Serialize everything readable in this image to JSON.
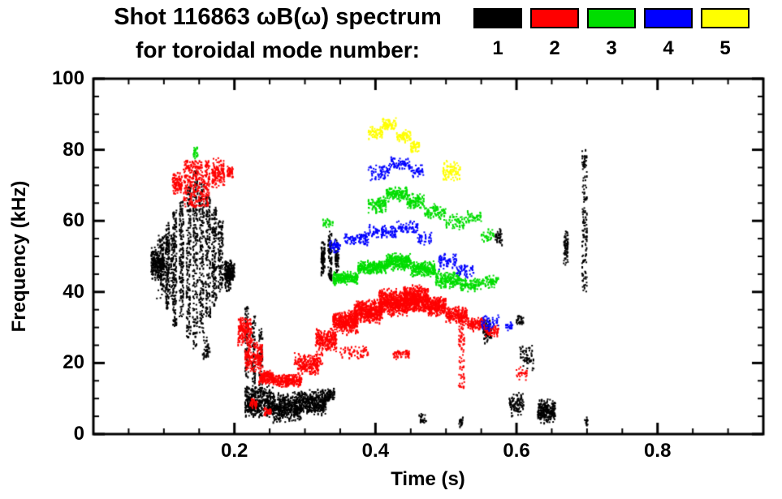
{
  "header": {
    "title": "Shot 116863 ωB(ω) spectrum",
    "subtitle": "for toroidal mode number:"
  },
  "legend": {
    "position": "top-right",
    "items": [
      {
        "label": "1",
        "color": "#000000",
        "name": "mode-1"
      },
      {
        "label": "2",
        "color": "#ff0000",
        "name": "mode-2"
      },
      {
        "label": "3",
        "color": "#00dd00",
        "name": "mode-3"
      },
      {
        "label": "4",
        "color": "#0000ff",
        "name": "mode-4"
      },
      {
        "label": "5",
        "color": "#ffff00",
        "name": "mode-5"
      }
    ]
  },
  "chart_data": {
    "type": "scatter",
    "title": "Shot 116863 ωB(ω) spectrum for toroidal mode number:",
    "xlabel": "Time (s)",
    "ylabel": "Frequency (kHz)",
    "xlim": [
      0.0,
      0.95
    ],
    "ylim": [
      0,
      100
    ],
    "xticks": [
      0.2,
      0.4,
      0.6,
      0.8
    ],
    "yticks": [
      0,
      20,
      40,
      60,
      80,
      100
    ],
    "x_minor_step": 0.05,
    "y_minor_step": 5,
    "grid": false,
    "legend_position": "top-right",
    "band_format": "[t_start_s, t_end_s, f_min_kHz, f_max_kHz, n_points]",
    "series": [
      {
        "name": "n=1",
        "mode": 1,
        "color": "#000000",
        "bands": [
          [
            0.082,
            0.1,
            43,
            53,
            260
          ],
          [
            0.09,
            0.115,
            38,
            56,
            200
          ],
          [
            0.103,
            0.108,
            35,
            60,
            120
          ],
          [
            0.113,
            0.118,
            30,
            63,
            140
          ],
          [
            0.122,
            0.128,
            33,
            66,
            150
          ],
          [
            0.132,
            0.138,
            27,
            70,
            160
          ],
          [
            0.141,
            0.148,
            24,
            74,
            180
          ],
          [
            0.15,
            0.157,
            28,
            71,
            170
          ],
          [
            0.159,
            0.166,
            33,
            67,
            150
          ],
          [
            0.168,
            0.175,
            36,
            64,
            140
          ],
          [
            0.177,
            0.184,
            40,
            60,
            120
          ],
          [
            0.186,
            0.196,
            40,
            50,
            150
          ],
          [
            0.155,
            0.165,
            20,
            28,
            40
          ],
          [
            0.19,
            0.2,
            43,
            48,
            80
          ],
          [
            0.215,
            0.22,
            16,
            36,
            80
          ],
          [
            0.225,
            0.23,
            14,
            34,
            70
          ],
          [
            0.235,
            0.24,
            13,
            30,
            60
          ],
          [
            0.215,
            0.255,
            4,
            14,
            420
          ],
          [
            0.255,
            0.295,
            3,
            12,
            450
          ],
          [
            0.295,
            0.33,
            5,
            13,
            350
          ],
          [
            0.33,
            0.342,
            9,
            13,
            60
          ],
          [
            0.323,
            0.328,
            44,
            56,
            90
          ],
          [
            0.333,
            0.338,
            43,
            57,
            90
          ],
          [
            0.343,
            0.348,
            45,
            55,
            70
          ],
          [
            0.553,
            0.565,
            25,
            33,
            90
          ],
          [
            0.59,
            0.61,
            5,
            12,
            100
          ],
          [
            0.605,
            0.625,
            17,
            26,
            60
          ],
          [
            0.63,
            0.655,
            3,
            10,
            240
          ],
          [
            0.667,
            0.673,
            47,
            58,
            70
          ],
          [
            0.693,
            0.7,
            40,
            80,
            140
          ],
          [
            0.697,
            0.701,
            2,
            5,
            15
          ],
          [
            0.462,
            0.472,
            3,
            6,
            25
          ],
          [
            0.518,
            0.524,
            2,
            5,
            18
          ],
          [
            0.57,
            0.58,
            53,
            58,
            40
          ],
          [
            0.6,
            0.61,
            30,
            34,
            30
          ]
        ]
      },
      {
        "name": "n=2",
        "mode": 2,
        "color": "#ff0000",
        "bands": [
          [
            0.112,
            0.126,
            67,
            74,
            90
          ],
          [
            0.128,
            0.165,
            64,
            77,
            320
          ],
          [
            0.168,
            0.186,
            69,
            78,
            130
          ],
          [
            0.19,
            0.198,
            72,
            76,
            40
          ],
          [
            0.205,
            0.225,
            25,
            33,
            160
          ],
          [
            0.215,
            0.24,
            17,
            27,
            200
          ],
          [
            0.235,
            0.255,
            14,
            18,
            150
          ],
          [
            0.255,
            0.295,
            13,
            17,
            260
          ],
          [
            0.29,
            0.32,
            16,
            22,
            150
          ],
          [
            0.315,
            0.345,
            23,
            30,
            220
          ],
          [
            0.34,
            0.375,
            28,
            35,
            360
          ],
          [
            0.37,
            0.41,
            31,
            38,
            460
          ],
          [
            0.405,
            0.445,
            33,
            41,
            560
          ],
          [
            0.44,
            0.475,
            34,
            42,
            560
          ],
          [
            0.475,
            0.5,
            33,
            39,
            260
          ],
          [
            0.5,
            0.53,
            31,
            36,
            200
          ],
          [
            0.53,
            0.555,
            29,
            33,
            120
          ],
          [
            0.555,
            0.575,
            27,
            31,
            60
          ],
          [
            0.285,
            0.325,
            19,
            23,
            80
          ],
          [
            0.35,
            0.39,
            21,
            25,
            60
          ],
          [
            0.425,
            0.45,
            21,
            24,
            50
          ],
          [
            0.222,
            0.232,
            7,
            10,
            40
          ],
          [
            0.242,
            0.252,
            5,
            8,
            30
          ],
          [
            0.518,
            0.526,
            13,
            33,
            80
          ],
          [
            0.6,
            0.615,
            15,
            19,
            30
          ]
        ]
      },
      {
        "name": "n=3",
        "mode": 3,
        "color": "#00dd00",
        "bands": [
          [
            0.142,
            0.148,
            77,
            81,
            25
          ],
          [
            0.34,
            0.375,
            42,
            46,
            230
          ],
          [
            0.375,
            0.415,
            45,
            49,
            280
          ],
          [
            0.415,
            0.45,
            46,
            51,
            280
          ],
          [
            0.45,
            0.485,
            44,
            49,
            230
          ],
          [
            0.485,
            0.52,
            41,
            46,
            180
          ],
          [
            0.52,
            0.55,
            40,
            44,
            100
          ],
          [
            0.55,
            0.575,
            41,
            45,
            60
          ],
          [
            0.39,
            0.415,
            62,
            67,
            110
          ],
          [
            0.415,
            0.445,
            65,
            70,
            140
          ],
          [
            0.445,
            0.47,
            63,
            68,
            100
          ],
          [
            0.47,
            0.5,
            60,
            65,
            80
          ],
          [
            0.5,
            0.53,
            57,
            62,
            60
          ],
          [
            0.53,
            0.55,
            59,
            63,
            40
          ],
          [
            0.55,
            0.57,
            54,
            58,
            30
          ],
          [
            0.325,
            0.34,
            58,
            61,
            25
          ]
        ]
      },
      {
        "name": "n=4",
        "mode": 4,
        "color": "#0000ff",
        "bands": [
          [
            0.335,
            0.35,
            51,
            55,
            50
          ],
          [
            0.355,
            0.39,
            53,
            57,
            80
          ],
          [
            0.39,
            0.43,
            55,
            59,
            90
          ],
          [
            0.43,
            0.46,
            56,
            60,
            60
          ],
          [
            0.46,
            0.48,
            53,
            57,
            35
          ],
          [
            0.39,
            0.42,
            71,
            76,
            60
          ],
          [
            0.42,
            0.45,
            74,
            78,
            70
          ],
          [
            0.45,
            0.468,
            72,
            76,
            40
          ],
          [
            0.49,
            0.515,
            46,
            51,
            60
          ],
          [
            0.515,
            0.54,
            44,
            48,
            50
          ],
          [
            0.55,
            0.575,
            29,
            34,
            50
          ],
          [
            0.585,
            0.595,
            28,
            32,
            20
          ]
        ]
      },
      {
        "name": "n=5",
        "mode": 5,
        "color": "#ffff00",
        "bands": [
          [
            0.39,
            0.41,
            83,
            87,
            60
          ],
          [
            0.41,
            0.43,
            85,
            89,
            70
          ],
          [
            0.43,
            0.45,
            82,
            86,
            60
          ],
          [
            0.45,
            0.462,
            79,
            83,
            40
          ],
          [
            0.495,
            0.52,
            71,
            77,
            85
          ]
        ]
      }
    ]
  }
}
